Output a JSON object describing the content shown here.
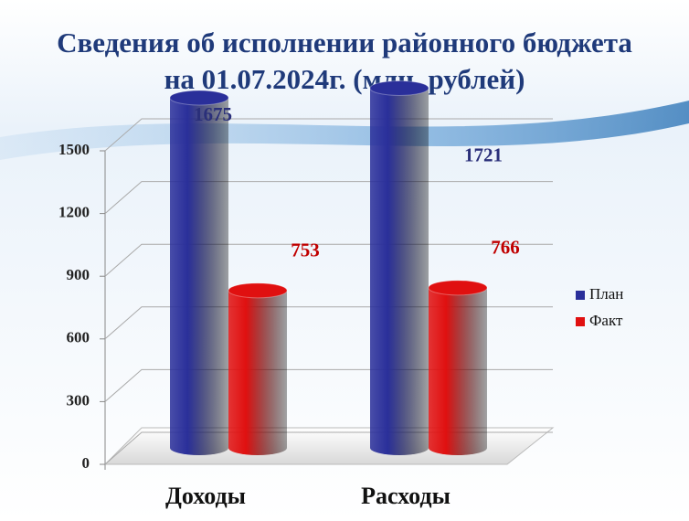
{
  "chart_data": {
    "type": "bar3d",
    "title": [
      "Сведения об исполнении районного бюджета",
      "на 01.07.2024г. (млн. рублей)"
    ],
    "categories": [
      "Доходы",
      "Расходы"
    ],
    "series": [
      {
        "name": "План",
        "color": "#2a2f9a",
        "values": [
          1675,
          1721
        ]
      },
      {
        "name": "Факт",
        "color": "#e01010",
        "values": [
          753,
          766
        ]
      }
    ],
    "ylim": [
      0,
      1500
    ],
    "yticks": [
      0,
      300,
      600,
      900,
      1200,
      1500
    ],
    "grid": true,
    "legend": "right"
  }
}
